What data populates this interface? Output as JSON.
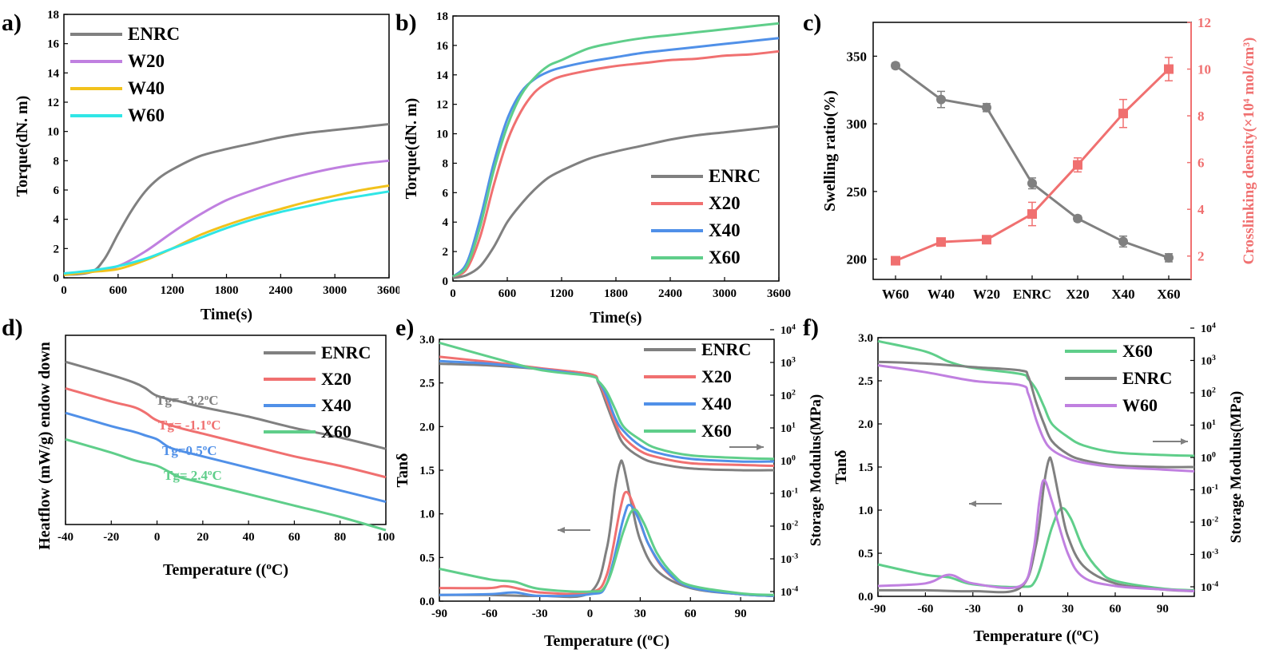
{
  "chart_data": [
    {
      "id": "a",
      "type": "line",
      "panel_label": "a)",
      "xlabel": "Time(s)",
      "ylabel": "Torque(dN. m)",
      "xlim": [
        0,
        3600
      ],
      "ylim": [
        0,
        18
      ],
      "xticks": [
        0,
        600,
        1200,
        1800,
        2400,
        3000,
        3600
      ],
      "yticks": [
        0,
        2,
        4,
        6,
        8,
        10,
        12,
        14,
        16,
        18
      ],
      "legend": "top-left",
      "series": [
        {
          "name": "ENRC",
          "color": "#808080",
          "x": [
            0,
            300,
            450,
            600,
            750,
            900,
            1050,
            1200,
            1500,
            1800,
            2100,
            2400,
            2700,
            3000,
            3300,
            3600
          ],
          "y": [
            0.2,
            0.4,
            1.3,
            3.0,
            4.6,
            5.9,
            6.8,
            7.4,
            8.3,
            8.8,
            9.2,
            9.6,
            9.9,
            10.1,
            10.3,
            10.5
          ]
        },
        {
          "name": "W20",
          "color": "#c080e0",
          "x": [
            0,
            300,
            600,
            900,
            1200,
            1500,
            1800,
            2100,
            2400,
            2700,
            3000,
            3300,
            3600
          ],
          "y": [
            0.3,
            0.4,
            0.8,
            1.8,
            3.1,
            4.3,
            5.3,
            6.0,
            6.6,
            7.1,
            7.5,
            7.8,
            8.0
          ]
        },
        {
          "name": "W40",
          "color": "#f2c21c",
          "x": [
            0,
            300,
            600,
            900,
            1200,
            1500,
            1800,
            2100,
            2400,
            2700,
            3000,
            3300,
            3600
          ],
          "y": [
            0.2,
            0.4,
            0.6,
            1.2,
            2.0,
            2.9,
            3.6,
            4.2,
            4.7,
            5.2,
            5.6,
            6.0,
            6.3
          ]
        },
        {
          "name": "W60",
          "color": "#30e6e6",
          "x": [
            0,
            300,
            600,
            900,
            1200,
            1500,
            1800,
            2100,
            2400,
            2700,
            3000,
            3300,
            3600
          ],
          "y": [
            0.3,
            0.5,
            0.8,
            1.3,
            2.0,
            2.7,
            3.4,
            4.0,
            4.5,
            4.9,
            5.3,
            5.6,
            5.9
          ]
        }
      ]
    },
    {
      "id": "b",
      "type": "line",
      "panel_label": "b)",
      "xlabel": "Time(s)",
      "ylabel": "Torque(dN. m)",
      "xlim": [
        0,
        3600
      ],
      "ylim": [
        0,
        18
      ],
      "xticks": [
        0,
        600,
        1200,
        1800,
        2400,
        3000,
        3600
      ],
      "yticks": [
        0,
        2,
        4,
        6,
        8,
        10,
        12,
        14,
        16,
        18
      ],
      "legend": "bottom-right",
      "series": [
        {
          "name": "ENRC",
          "color": "#808080",
          "x": [
            0,
            150,
            300,
            450,
            600,
            750,
            900,
            1050,
            1200,
            1500,
            1800,
            2100,
            2400,
            2700,
            3000,
            3300,
            3600
          ],
          "y": [
            0.2,
            0.4,
            1.0,
            2.3,
            4.0,
            5.2,
            6.2,
            7.0,
            7.5,
            8.3,
            8.8,
            9.2,
            9.6,
            9.9,
            10.1,
            10.3,
            10.5
          ]
        },
        {
          "name": "X20",
          "color": "#f07070",
          "x": [
            0,
            150,
            300,
            450,
            600,
            750,
            900,
            1050,
            1200,
            1500,
            1800,
            2100,
            2400,
            2700,
            3000,
            3300,
            3600
          ],
          "y": [
            0.3,
            0.8,
            3.0,
            6.5,
            9.5,
            11.5,
            12.8,
            13.5,
            13.9,
            14.3,
            14.6,
            14.8,
            15.0,
            15.1,
            15.3,
            15.4,
            15.6
          ]
        },
        {
          "name": "X40",
          "color": "#5090e8",
          "x": [
            0,
            150,
            300,
            450,
            600,
            750,
            900,
            1050,
            1200,
            1500,
            1800,
            2100,
            2400,
            2700,
            3000,
            3300,
            3600
          ],
          "y": [
            0.3,
            1.2,
            4.2,
            8.0,
            11.0,
            12.8,
            13.7,
            14.2,
            14.5,
            14.9,
            15.2,
            15.5,
            15.7,
            15.9,
            16.1,
            16.3,
            16.5
          ]
        },
        {
          "name": "X60",
          "color": "#5fce8a",
          "x": [
            0,
            150,
            300,
            450,
            600,
            750,
            900,
            1050,
            1200,
            1500,
            1800,
            2100,
            2400,
            2700,
            3000,
            3300,
            3600
          ],
          "y": [
            0.3,
            1.0,
            3.7,
            7.5,
            10.5,
            12.6,
            13.8,
            14.6,
            15.0,
            15.8,
            16.2,
            16.5,
            16.7,
            16.9,
            17.1,
            17.3,
            17.5
          ]
        }
      ]
    },
    {
      "id": "c",
      "type": "line",
      "panel_label": "c)",
      "categories": [
        "W60",
        "W40",
        "W20",
        "ENRC",
        "X20",
        "X40",
        "X60"
      ],
      "ylabel": "Swelling ratio(%)",
      "y2label": "Crosslinking density(×10⁴ mol/cm³)",
      "ylim": [
        185,
        375
      ],
      "yticks": [
        200,
        250,
        300,
        350
      ],
      "y2lim": [
        1,
        12
      ],
      "y2ticks": [
        2,
        4,
        6,
        8,
        10,
        12
      ],
      "series": [
        {
          "name": "Swelling ratio",
          "axis": "left",
          "color": "#808080",
          "marker": "circle",
          "values": [
            343,
            318,
            312,
            256,
            230,
            213,
            201
          ],
          "errors": [
            2,
            6,
            3,
            4,
            2,
            4,
            3
          ]
        },
        {
          "name": "Crosslinking density",
          "axis": "right",
          "color": "#f07070",
          "marker": "square",
          "values": [
            1.8,
            2.6,
            2.7,
            3.8,
            5.9,
            8.1,
            10.0
          ],
          "errors": [
            0.1,
            0.1,
            0.1,
            0.5,
            0.3,
            0.6,
            0.5
          ]
        }
      ]
    },
    {
      "id": "d",
      "type": "line",
      "panel_label": "d)",
      "xlabel": "Temperature (°C)",
      "ylabel": "Heatflow (mW/g) endow down",
      "xlim": [
        -40,
        100
      ],
      "xticks": [
        -40,
        -20,
        0,
        20,
        40,
        60,
        80,
        100
      ],
      "ylim": [
        0,
        1
      ],
      "legend": "top-right",
      "series": [
        {
          "name": "ENRC",
          "color": "#808080",
          "annotation": "Tg= -3.2°C",
          "x": [
            -40,
            -20,
            -10,
            -5,
            0,
            10,
            20,
            40,
            60,
            80,
            100
          ],
          "y": [
            0.86,
            0.79,
            0.75,
            0.72,
            0.68,
            0.65,
            0.62,
            0.57,
            0.51,
            0.46,
            0.4
          ]
        },
        {
          "name": "X20",
          "color": "#f07070",
          "annotation": "Tg= -1.1°C",
          "x": [
            -40,
            -20,
            -10,
            -5,
            0,
            10,
            20,
            40,
            60,
            80,
            100
          ],
          "y": [
            0.72,
            0.65,
            0.62,
            0.59,
            0.55,
            0.51,
            0.48,
            0.42,
            0.36,
            0.31,
            0.25
          ]
        },
        {
          "name": "X40",
          "color": "#5090e8",
          "annotation": "Tg=0.5°C",
          "x": [
            -40,
            -20,
            -10,
            -5,
            0,
            5,
            10,
            20,
            40,
            60,
            80,
            100
          ],
          "y": [
            0.59,
            0.52,
            0.49,
            0.47,
            0.45,
            0.41,
            0.39,
            0.36,
            0.3,
            0.24,
            0.18,
            0.12
          ]
        },
        {
          "name": "X60",
          "color": "#5fce8a",
          "annotation": "Tg= 2.4°C",
          "x": [
            -40,
            -20,
            -10,
            0,
            5,
            10,
            20,
            40,
            60,
            80,
            100
          ],
          "y": [
            0.45,
            0.38,
            0.34,
            0.31,
            0.28,
            0.25,
            0.22,
            0.16,
            0.1,
            0.04,
            -0.03
          ]
        }
      ]
    },
    {
      "id": "e",
      "type": "line",
      "panel_label": "e)",
      "xlabel": "Temperature (°C)",
      "ylabel": "Tanδ",
      "y2label": "Storage Modulus(MPa)",
      "xlim": [
        -90,
        110
      ],
      "xticks": [
        -90,
        -60,
        -30,
        0,
        30,
        60,
        90
      ],
      "ylim": [
        0,
        3
      ],
      "yticks": [
        0.0,
        0.5,
        1.0,
        1.5,
        2.0,
        2.5,
        3.0
      ],
      "y2ticks": [
        "10-4",
        "10-3",
        "10-2",
        "10-1",
        "100",
        "101",
        "102",
        "103",
        "104"
      ],
      "legend": "top-right",
      "series": [
        {
          "name": "ENRC",
          "color": "#808080",
          "x_tan": [
            -90,
            -60,
            -30,
            0,
            10,
            15,
            18,
            20,
            25,
            30,
            40,
            60,
            90,
            110
          ],
          "tan": [
            0.07,
            0.07,
            0.06,
            0.1,
            0.6,
            1.3,
            1.58,
            1.55,
            1.1,
            0.7,
            0.35,
            0.15,
            0.08,
            0.06
          ],
          "x_mod": [
            -90,
            -60,
            -30,
            0,
            5,
            10,
            15,
            20,
            30,
            40,
            60,
            90,
            110
          ],
          "mod": [
            2.72,
            2.7,
            2.66,
            2.6,
            2.5,
            2.25,
            2.0,
            1.8,
            1.65,
            1.58,
            1.52,
            1.5,
            1.5
          ]
        },
        {
          "name": "X20",
          "color": "#f07070",
          "x_tan": [
            -90,
            -60,
            -50,
            -30,
            0,
            10,
            18,
            22,
            28,
            35,
            45,
            60,
            90,
            110
          ],
          "tan": [
            0.15,
            0.15,
            0.17,
            0.1,
            0.1,
            0.3,
            1.05,
            1.25,
            1.0,
            0.65,
            0.35,
            0.16,
            0.08,
            0.06
          ],
          "x_mod": [
            -90,
            -60,
            -30,
            0,
            5,
            10,
            15,
            20,
            30,
            40,
            60,
            90,
            110
          ],
          "mod": [
            2.8,
            2.74,
            2.67,
            2.6,
            2.52,
            2.3,
            2.05,
            1.88,
            1.72,
            1.65,
            1.58,
            1.56,
            1.55
          ]
        },
        {
          "name": "X40",
          "color": "#5090e8",
          "x_tan": [
            -90,
            -60,
            -45,
            -30,
            0,
            10,
            20,
            24,
            30,
            35,
            45,
            60,
            90,
            110
          ],
          "tan": [
            0.07,
            0.08,
            0.1,
            0.06,
            0.08,
            0.2,
            0.95,
            1.1,
            0.9,
            0.65,
            0.36,
            0.16,
            0.08,
            0.06
          ],
          "x_mod": [
            -90,
            -60,
            -30,
            0,
            5,
            10,
            15,
            20,
            30,
            40,
            60,
            90,
            110
          ],
          "mod": [
            2.75,
            2.72,
            2.66,
            2.58,
            2.52,
            2.35,
            2.1,
            1.95,
            1.78,
            1.7,
            1.63,
            1.6,
            1.6
          ]
        },
        {
          "name": "X60",
          "color": "#5fce8a",
          "x_tan": [
            -90,
            -60,
            -45,
            -30,
            0,
            10,
            20,
            26,
            32,
            40,
            50,
            60,
            90,
            110
          ],
          "tan": [
            0.37,
            0.25,
            0.22,
            0.14,
            0.11,
            0.2,
            0.8,
            1.05,
            0.9,
            0.55,
            0.3,
            0.18,
            0.09,
            0.07
          ],
          "x_mod": [
            -90,
            -60,
            -30,
            0,
            5,
            10,
            15,
            20,
            30,
            40,
            60,
            90,
            110
          ],
          "mod": [
            2.96,
            2.8,
            2.65,
            2.58,
            2.52,
            2.4,
            2.2,
            2.0,
            1.85,
            1.75,
            1.67,
            1.64,
            1.63
          ]
        }
      ]
    },
    {
      "id": "f",
      "type": "line",
      "panel_label": "f)",
      "xlabel": "Temperature (°C)",
      "ylabel": "Tanδ",
      "y2label": "Storage Modulus(MPa)",
      "xlim": [
        -90,
        110
      ],
      "xticks": [
        -90,
        -60,
        -30,
        0,
        30,
        60,
        90
      ],
      "ylim": [
        0,
        3
      ],
      "yticks": [
        0.0,
        0.5,
        1.0,
        1.5,
        2.0,
        2.5,
        3.0
      ],
      "y2ticks": [
        "10-4",
        "10-3",
        "10-2",
        "10-1",
        "100",
        "101",
        "102",
        "103",
        "104"
      ],
      "legend": "top-right",
      "series": [
        {
          "name": "X60",
          "color": "#5fce8a",
          "x_tan": [
            -90,
            -60,
            -45,
            -30,
            0,
            10,
            20,
            26,
            32,
            40,
            50,
            60,
            90,
            110
          ],
          "tan": [
            0.37,
            0.25,
            0.22,
            0.14,
            0.11,
            0.2,
            0.8,
            1.02,
            0.9,
            0.55,
            0.3,
            0.18,
            0.09,
            0.07
          ],
          "x_mod": [
            -90,
            -60,
            -45,
            -30,
            0,
            5,
            10,
            15,
            20,
            30,
            40,
            60,
            90,
            110
          ],
          "mod": [
            2.96,
            2.84,
            2.72,
            2.65,
            2.58,
            2.52,
            2.4,
            2.2,
            2.0,
            1.85,
            1.75,
            1.67,
            1.64,
            1.63
          ]
        },
        {
          "name": "ENRC",
          "color": "#808080",
          "x_tan": [
            -90,
            -60,
            -30,
            0,
            10,
            15,
            18,
            20,
            25,
            30,
            40,
            60,
            90,
            110
          ],
          "tan": [
            0.07,
            0.07,
            0.06,
            0.1,
            0.6,
            1.3,
            1.58,
            1.55,
            1.1,
            0.7,
            0.35,
            0.15,
            0.08,
            0.06
          ],
          "x_mod": [
            -90,
            -60,
            -30,
            0,
            5,
            10,
            15,
            20,
            30,
            40,
            60,
            90,
            110
          ],
          "mod": [
            2.72,
            2.7,
            2.66,
            2.62,
            2.55,
            2.25,
            2.0,
            1.8,
            1.65,
            1.58,
            1.52,
            1.5,
            1.5
          ]
        },
        {
          "name": "W60",
          "color": "#c080e0",
          "x_tan": [
            -90,
            -60,
            -45,
            -30,
            0,
            8,
            12,
            15,
            20,
            30,
            40,
            60,
            90,
            110
          ],
          "tan": [
            0.12,
            0.15,
            0.25,
            0.15,
            0.12,
            0.5,
            1.1,
            1.35,
            1.1,
            0.5,
            0.22,
            0.12,
            0.08,
            0.06
          ],
          "x_mod": [
            -90,
            -60,
            -30,
            0,
            5,
            10,
            15,
            20,
            30,
            40,
            60,
            90,
            110
          ],
          "mod": [
            2.68,
            2.6,
            2.5,
            2.45,
            2.35,
            2.05,
            1.82,
            1.7,
            1.6,
            1.55,
            1.5,
            1.47,
            1.45
          ]
        }
      ]
    }
  ]
}
